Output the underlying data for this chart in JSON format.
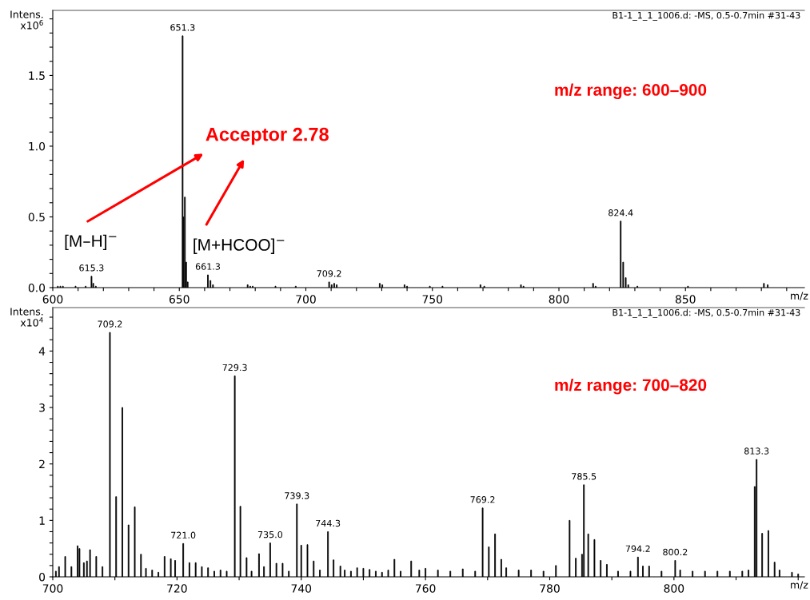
{
  "chart_data": [
    {
      "type": "bar",
      "subtitle": "B1-1_1_1_1006.d: -MS, 0.5-0.7min #31-43",
      "xlabel": "m/z",
      "ylabel": "Intens.\nx10$^{6}$",
      "color": "#000000",
      "x": [
        602,
        603,
        604,
        609,
        613,
        615.3,
        616,
        617,
        651.3,
        651.6,
        652.2,
        652.7,
        653.3,
        661.3,
        662.3,
        663.3,
        677,
        678,
        679,
        688,
        696,
        709.2,
        710.2,
        711.2,
        712.2,
        729.2,
        730.2,
        739,
        740,
        749,
        754,
        769,
        770.5,
        785,
        786,
        813.5,
        814.5,
        824.4,
        825.4,
        826.4,
        827.4,
        831,
        851,
        881,
        882.5
      ],
      "values": [
        0.01,
        0.01,
        0.01,
        0.01,
        0.01,
        0.08,
        0.03,
        0.01,
        1.78,
        0.5,
        0.64,
        0.18,
        0.04,
        0.09,
        0.05,
        0.02,
        0.02,
        0.01,
        0.01,
        0.01,
        0.01,
        0.04,
        0.02,
        0.03,
        0.02,
        0.03,
        0.02,
        0.02,
        0.01,
        0.01,
        0.01,
        0.02,
        0.01,
        0.02,
        0.01,
        0.03,
        0.01,
        0.47,
        0.18,
        0.07,
        0.02,
        0.01,
        0.01,
        0.03,
        0.02
      ],
      "xlim": [
        600,
        897
      ],
      "ylim": [
        0,
        1.96
      ],
      "xticks": [
        600,
        {
          "value": 610,
          "label": null
        },
        {
          "value": 620,
          "label": null
        },
        {
          "value": 630,
          "label": null
        },
        {
          "value": 640,
          "label": null
        },
        650,
        {
          "value": 660,
          "label": null
        },
        {
          "value": 670,
          "label": null
        },
        {
          "value": 680,
          "label": null
        },
        {
          "value": 690,
          "label": null
        },
        700,
        {
          "value": 710,
          "label": null
        },
        {
          "value": 720,
          "label": null
        },
        {
          "value": 730,
          "label": null
        },
        {
          "value": 740,
          "label": null
        },
        750,
        {
          "value": 760,
          "label": null
        },
        {
          "value": 770,
          "label": null
        },
        {
          "value": 780,
          "label": null
        },
        {
          "value": 790,
          "label": null
        },
        800,
        {
          "value": 810,
          "label": null
        },
        {
          "value": 820,
          "label": null
        },
        {
          "value": 830,
          "label": null
        },
        {
          "value": 840,
          "label": null
        },
        850,
        {
          "value": 860,
          "label": null
        },
        {
          "value": 870,
          "label": null
        },
        {
          "value": 880,
          "label": null
        },
        {
          "value": 890,
          "label": null
        }
      ],
      "yticks": [
        {
          "value": 0,
          "label": "0.0"
        },
        {
          "value": 0.1,
          "label": null
        },
        {
          "value": 0.2,
          "label": null
        },
        {
          "value": 0.3,
          "label": null
        },
        {
          "value": 0.4,
          "label": null
        },
        0.5,
        {
          "value": 0.6,
          "label": null
        },
        {
          "value": 0.7,
          "label": null
        },
        {
          "value": 0.8,
          "label": null
        },
        {
          "value": 0.9,
          "label": null
        },
        {
          "value": 1,
          "label": "1.0"
        },
        {
          "value": 1.1,
          "label": null
        },
        {
          "value": 1.2,
          "label": null
        },
        {
          "value": 1.3,
          "label": null
        },
        {
          "value": 1.4,
          "label": null
        },
        1.5,
        {
          "value": 1.6,
          "label": null
        },
        {
          "value": 1.7,
          "label": null
        },
        {
          "value": 1.8,
          "label": null
        },
        {
          "value": 1.9,
          "label": null
        }
      ],
      "grid": false,
      "legend": false,
      "annotations": [
        "Acceptor 2.78",
        "[M–H]$^{−}$",
        "[M+HCOO]$^{−}$",
        "m/z range: 600–900",
        {
          "text": "615.3",
          "x": 615.3,
          "y": 0.08
        },
        {
          "text": "651.3",
          "x": 651.3,
          "y": 1.78
        },
        {
          "text": "661.3",
          "x": 661.3,
          "y": 0.09
        },
        {
          "text": "709.2",
          "x": 709.2,
          "y": 0.04
        },
        {
          "text": "824.4",
          "x": 824.4,
          "y": 0.47
        }
      ]
    },
    {
      "type": "bar",
      "subtitle": "B1-1_1_1_1006.d: -MS, 0.5-0.7min #31-43",
      "xlabel": "m/z",
      "ylabel": "Intens.\nx10$^{4}$",
      "color": "#000000",
      "x": [
        700.5,
        701,
        702,
        703,
        704,
        704.3,
        705,
        705.5,
        706,
        707,
        708,
        709.2,
        710.2,
        711.2,
        712.2,
        713.2,
        714.2,
        715,
        716,
        717,
        718,
        719,
        719.7,
        721.0,
        722,
        723,
        724,
        725,
        726,
        727,
        728,
        729.3,
        730.2,
        731.2,
        732,
        733.2,
        734,
        735.0,
        736,
        737,
        738,
        739.3,
        740,
        741,
        742,
        743,
        744.3,
        745.2,
        746.3,
        747,
        748,
        749,
        750,
        751,
        752,
        753,
        754,
        755,
        756,
        757.7,
        759,
        760,
        762,
        764,
        766,
        768,
        769.2,
        770.2,
        771.2,
        772.2,
        773,
        775,
        777,
        779,
        781,
        783.2,
        784.2,
        785.2,
        785.5,
        786.2,
        787.2,
        788.2,
        789.2,
        791,
        793,
        794.2,
        795,
        796,
        798,
        800.2,
        801,
        803,
        805,
        807,
        809,
        811,
        812,
        813.0,
        813.3,
        814.2,
        815.2,
        816.2,
        817,
        819,
        820
      ],
      "values": [
        0.1,
        0.18,
        0.36,
        0.18,
        0.55,
        0.5,
        0.25,
        0.28,
        0.48,
        0.36,
        0.18,
        4.33,
        1.42,
        3.0,
        0.92,
        1.24,
        0.4,
        0.15,
        0.12,
        0.08,
        0.36,
        0.32,
        0.29,
        0.59,
        0.25,
        0.25,
        0.18,
        0.16,
        0.1,
        0.12,
        0.1,
        3.56,
        1.25,
        0.34,
        0.1,
        0.41,
        0.18,
        0.6,
        0.24,
        0.24,
        0.1,
        1.29,
        0.56,
        0.57,
        0.28,
        0.12,
        0.8,
        0.3,
        0.19,
        0.12,
        0.1,
        0.16,
        0.15,
        0.13,
        0.1,
        0.08,
        0.12,
        0.31,
        0.1,
        0.28,
        0.12,
        0.15,
        0.12,
        0.1,
        0.14,
        0.1,
        1.22,
        0.53,
        0.76,
        0.31,
        0.16,
        0.12,
        0.12,
        0.1,
        0.2,
        1.0,
        0.33,
        0.4,
        1.63,
        0.76,
        0.66,
        0.29,
        0.22,
        0.1,
        0.1,
        0.35,
        0.19,
        0.19,
        0.1,
        0.29,
        0.12,
        0.1,
        0.1,
        0.1,
        0.1,
        0.1,
        0.12,
        1.6,
        2.08,
        0.77,
        0.82,
        0.26,
        0.12,
        0.08,
        0.05
      ],
      "xlim": [
        700,
        821
      ],
      "ylim": [
        0,
        4.77
      ],
      "xticks": [
        700,
        {
          "value": 710,
          "label": null
        },
        720,
        {
          "value": 730,
          "label": null
        },
        740,
        {
          "value": 750,
          "label": null
        },
        760,
        {
          "value": 770,
          "label": null
        },
        780,
        {
          "value": 790,
          "label": null
        },
        800,
        {
          "value": 810,
          "label": null
        },
        {
          "value": 820,
          "label": null
        }
      ],
      "yticks": [
        0,
        {
          "value": 0.2,
          "label": null
        },
        {
          "value": 0.4,
          "label": null
        },
        {
          "value": 0.6,
          "label": null
        },
        {
          "value": 0.8,
          "label": null
        },
        1,
        {
          "value": 1.2,
          "label": null
        },
        {
          "value": 1.4,
          "label": null
        },
        {
          "value": 1.6,
          "label": null
        },
        {
          "value": 1.8,
          "label": null
        },
        2,
        {
          "value": 2.2,
          "label": null
        },
        {
          "value": 2.4,
          "label": null
        },
        {
          "value": 2.6,
          "label": null
        },
        {
          "value": 2.8,
          "label": null
        },
        3,
        {
          "value": 3.2,
          "label": null
        },
        {
          "value": 3.4,
          "label": null
        },
        {
          "value": 3.6,
          "label": null
        },
        {
          "value": 3.8,
          "label": null
        },
        4,
        {
          "value": 4.2,
          "label": null
        },
        {
          "value": 4.4,
          "label": null
        },
        {
          "value": 4.6,
          "label": null
        }
      ],
      "grid": false,
      "legend": false,
      "annotations": [
        "m/z range: 700–820",
        {
          "text": "709.2",
          "x": 709.2,
          "y": 4.33
        },
        {
          "text": "721.0",
          "x": 721.0,
          "y": 0.59
        },
        {
          "text": "729.3",
          "x": 729.3,
          "y": 3.56
        },
        {
          "text": "735.0",
          "x": 735.0,
          "y": 0.6
        },
        {
          "text": "739.3",
          "x": 739.3,
          "y": 1.29
        },
        {
          "text": "744.3",
          "x": 744.3,
          "y": 0.8
        },
        {
          "text": "769.2",
          "x": 769.2,
          "y": 1.22
        },
        {
          "text": "785.5",
          "x": 785.5,
          "y": 1.63
        },
        {
          "text": "794.2",
          "x": 794.2,
          "y": 0.35
        },
        {
          "text": "800.2",
          "x": 800.2,
          "y": 0.29
        },
        {
          "text": "813.3",
          "x": 813.3,
          "y": 2.08
        }
      ]
    }
  ]
}
